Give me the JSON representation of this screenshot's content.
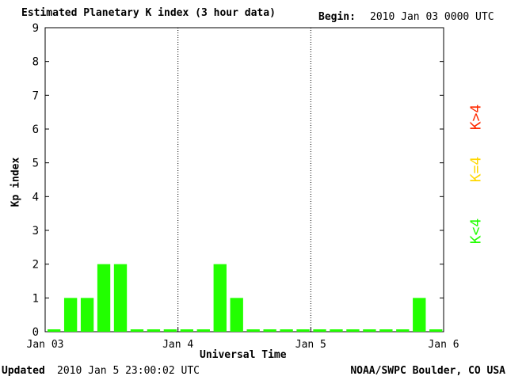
{
  "header": {
    "title": "Estimated Planetary K index (3 hour data)",
    "begin_label": "Begin:",
    "begin_value": "2010 Jan 03 0000 UTC"
  },
  "footer": {
    "updated_label": "Updated",
    "updated_value": "2010 Jan  5 23:00:02 UTC",
    "credit": "NOAA/SWPC Boulder, CO USA"
  },
  "legend": [
    {
      "label": "K>4",
      "color": "#ff2a00"
    },
    {
      "label": "K=4",
      "color": "#ffd700"
    },
    {
      "label": "K<4",
      "color": "#22ff00"
    }
  ],
  "chart_data": {
    "type": "bar",
    "title": "Estimated Planetary K index (3 hour data)",
    "xlabel": "Universal Time",
    "ylabel": "Kp index",
    "ylim": [
      0,
      9
    ],
    "yticks": [
      0,
      1,
      2,
      3,
      4,
      5,
      6,
      7,
      8,
      9
    ],
    "xticks": [
      "Jan 03",
      "Jan 4",
      "Jan 5",
      "Jan 6"
    ],
    "interval_hours": 3,
    "bar_color": "#22ff00",
    "values": [
      0,
      1,
      1,
      2,
      2,
      0,
      0,
      0,
      0,
      0,
      2,
      1,
      0,
      0,
      0,
      0,
      0,
      0,
      0,
      0,
      0,
      0,
      1,
      0
    ],
    "day_separators": [
      "Jan 4",
      "Jan 5"
    ],
    "grid": false
  }
}
